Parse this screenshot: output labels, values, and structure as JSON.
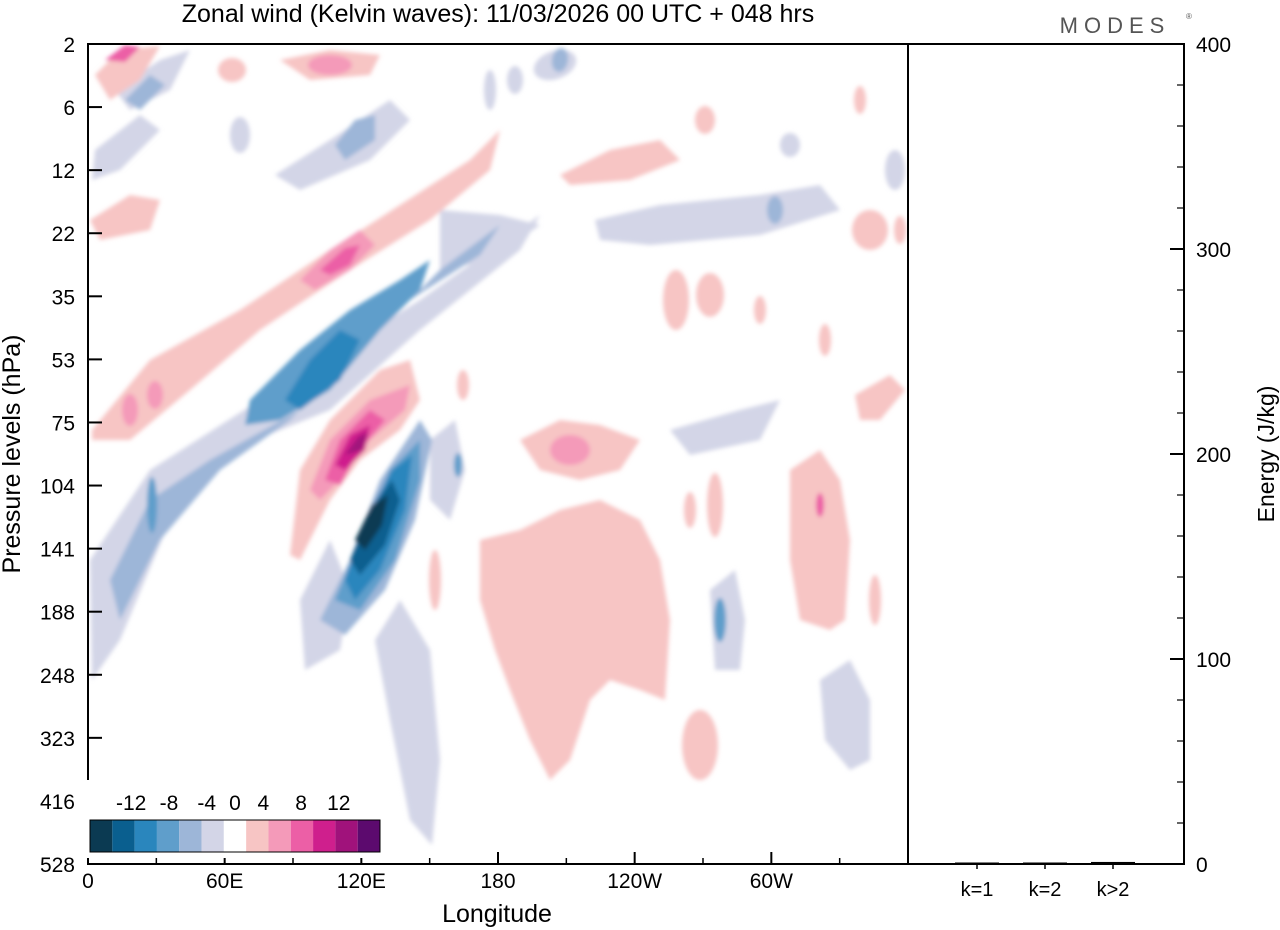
{
  "brand": "MODES",
  "brand_mark": "®",
  "chart_data": [
    {
      "type": "heatmap",
      "title": "Zonal wind (Kelvin waves):  11/03/2026  00 UTC  + 048 hrs",
      "xlabel": "Longitude",
      "ylabel": "Pressure levels (hPa)",
      "x_ticks": [
        "0",
        "60E",
        "120E",
        "180",
        "120W",
        "60W"
      ],
      "x_tick_degrees": [
        0,
        60,
        120,
        180,
        240,
        300
      ],
      "x_range_degrees": [
        0,
        360
      ],
      "y_ticks": [
        "2",
        "6",
        "12",
        "22",
        "35",
        "53",
        "75",
        "104",
        "141",
        "188",
        "248",
        "323",
        "416",
        "528"
      ],
      "colorbar": {
        "labels": [
          "-12",
          "-8",
          "-4",
          "0",
          "4",
          "8",
          "12"
        ],
        "levels": [
          -14,
          -12,
          -10,
          -8,
          -6,
          -4,
          -2,
          2,
          4,
          6,
          8,
          10,
          12,
          14
        ],
        "colors": [
          "#0b3a52",
          "#0a5f8f",
          "#2a86bd",
          "#5f9ecb",
          "#9db6d8",
          "#d3d5e7",
          "#ffffff",
          "#f7c5c4",
          "#f49ab9",
          "#ec5fa6",
          "#cf1f8d",
          "#a0127b",
          "#5c0a6e"
        ]
      },
      "features": [
        {
          "name": "negative anomaly band (upper)",
          "value": -6,
          "lon_start": 40,
          "lon_end": 185,
          "p_top": 22,
          "p_bottom": 188
        },
        {
          "name": "negative anomaly core",
          "value": -12,
          "lon_start": 110,
          "lon_end": 140,
          "p_top": 90,
          "p_bottom": 188
        },
        {
          "name": "positive anomaly core",
          "value": 10,
          "lon_start": 95,
          "lon_end": 140,
          "p_top": 60,
          "p_bottom": 141
        },
        {
          "name": "positive anomaly band (upper)",
          "value": 6,
          "lon_start": 5,
          "lon_end": 185,
          "p_top": 12,
          "p_bottom": 90
        },
        {
          "name": "positive anomaly (central Pacific)",
          "value": 4,
          "lon_start": 170,
          "lon_end": 255,
          "p_top": 75,
          "p_bottom": 416
        }
      ]
    },
    {
      "type": "bar",
      "ylabel": "Energy (J/kg)",
      "ylim": [
        0,
        400
      ],
      "y_ticks": [
        "0",
        "100",
        "200",
        "300",
        "400"
      ],
      "y_tick_values": [
        0,
        100,
        200,
        300,
        400
      ],
      "categories": [
        "k=1",
        "k=2",
        "k>2"
      ],
      "values": [
        0.3,
        0.2,
        1.0
      ]
    }
  ]
}
